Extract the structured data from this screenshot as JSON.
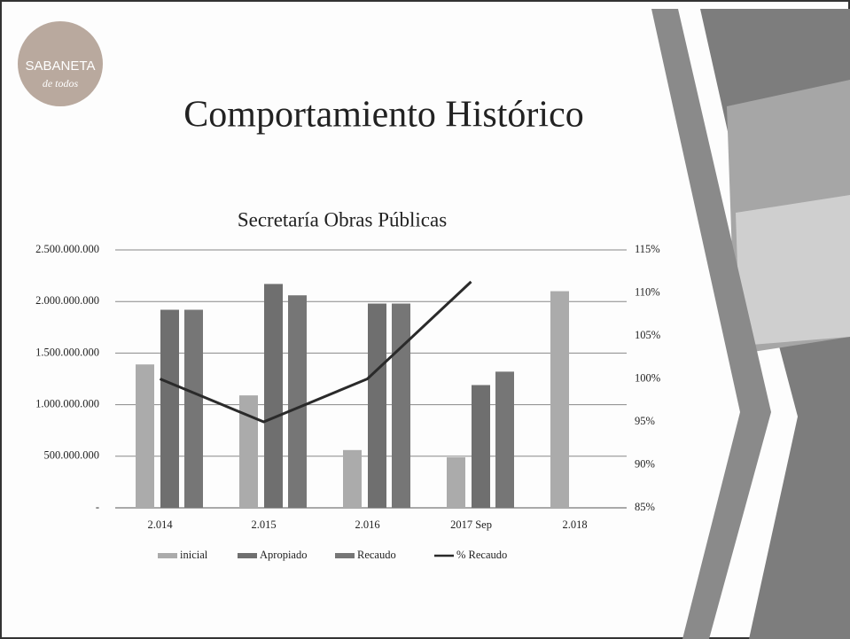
{
  "slide": {
    "title": "Comportamiento Histórico"
  },
  "logo": {
    "name": "SABANETA",
    "tagline": "de todos"
  },
  "chart_data": {
    "type": "bar",
    "title": "Secretaría Obras Públicas",
    "categories": [
      "2.014",
      "2.015",
      "2.016",
      "2017 Sep",
      "2.018"
    ],
    "series": [
      {
        "name": "inicial",
        "color": "#ababab",
        "values": [
          1390000000,
          1090000000,
          560000000,
          490000000,
          2100000000
        ]
      },
      {
        "name": "Apropiado",
        "color": "#6f6f6f",
        "values": [
          1920000000,
          2170000000,
          1980000000,
          1190000000,
          null
        ]
      },
      {
        "name": "Recaudo",
        "color": "#767676",
        "values": [
          1920000000,
          2060000000,
          1980000000,
          1320000000,
          null
        ]
      },
      {
        "name": "% Recaudo",
        "type": "line",
        "axis": "y2",
        "color": "#2a2a2a",
        "values": [
          100,
          95,
          100,
          111.3,
          null
        ]
      }
    ],
    "ylim": [
      0,
      2500000000
    ],
    "yticks": [
      {
        "value": 0,
        "label": "-"
      },
      {
        "value": 500000000,
        "label": "500.000.000"
      },
      {
        "value": 1000000000,
        "label": "1.000.000.000"
      },
      {
        "value": 1500000000,
        "label": "1.500.000.000"
      },
      {
        "value": 2000000000,
        "label": "2.000.000.000"
      },
      {
        "value": 2500000000,
        "label": "2.500.000.000"
      }
    ],
    "y2lim": [
      85,
      115
    ],
    "y2ticks": [
      {
        "value": 85,
        "label": "85%"
      },
      {
        "value": 90,
        "label": "90%"
      },
      {
        "value": 95,
        "label": "95%"
      },
      {
        "value": 100,
        "label": "100%"
      },
      {
        "value": 105,
        "label": "105%"
      },
      {
        "value": 110,
        "label": "110%"
      },
      {
        "value": 115,
        "label": "115%"
      }
    ],
    "grid": true,
    "legend": "bottom"
  }
}
